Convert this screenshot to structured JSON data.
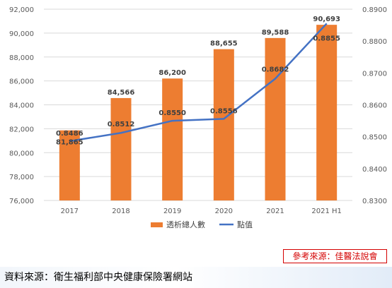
{
  "chart_data": {
    "type": "bar+line",
    "categories": [
      "2017",
      "2018",
      "2019",
      "2020",
      "2021",
      "2021 H1"
    ],
    "series": [
      {
        "name": "透析總人數",
        "type": "bar",
        "axis": "left",
        "values": [
          81865,
          84566,
          86200,
          88655,
          89588,
          90693
        ],
        "labels": [
          "81,865",
          "84,566",
          "86,200",
          "88,655",
          "89,588",
          "90,693"
        ],
        "color": "#ed7d31"
      },
      {
        "name": "點值",
        "type": "line",
        "axis": "right",
        "values": [
          0.8486,
          0.8512,
          0.855,
          0.8556,
          0.8682,
          0.8855
        ],
        "labels": [
          "0.8486",
          "0.8512",
          "0.8550",
          "0.8556",
          "0.8682",
          "0.8855"
        ],
        "color": "#4472c4"
      }
    ],
    "y_left": {
      "min": 76000,
      "max": 92000,
      "step": 2000,
      "ticks": [
        "76,000",
        "78,000",
        "80,000",
        "82,000",
        "84,000",
        "86,000",
        "88,000",
        "90,000",
        "92,000"
      ]
    },
    "y_right": {
      "min": 0.83,
      "max": 0.89,
      "step": 0.01,
      "ticks": [
        "0.8300",
        "0.8400",
        "0.8500",
        "0.8600",
        "0.8700",
        "0.8800",
        "0.8900"
      ]
    },
    "grid": true,
    "legend_position": "bottom",
    "title": "",
    "xlabel": "",
    "ylabel": ""
  },
  "reference": "參考來源：佳醫法說會",
  "source": "資料來源：衛生福利部中央健康保險署網站"
}
